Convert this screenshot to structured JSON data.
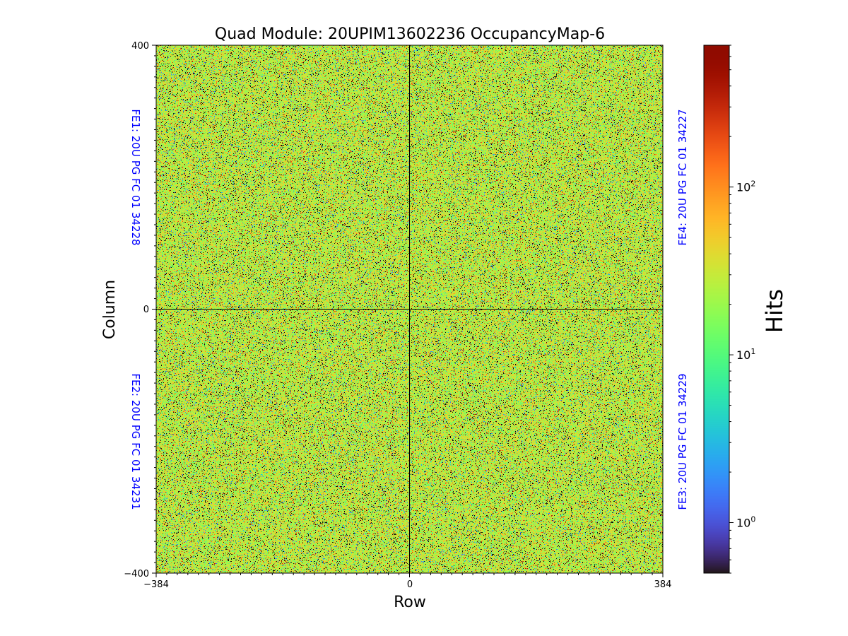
{
  "chart_data": {
    "type": "heatmap",
    "title": "Quad Module: 20UPIM13602236 OccupancyMap-6",
    "xlabel": "Row",
    "ylabel": "Column",
    "xlim": [
      -384,
      384
    ],
    "ylim": [
      -400,
      400
    ],
    "x_ticks": [
      "−384",
      "0",
      "384"
    ],
    "y_ticks": [
      "400",
      "0",
      "−400"
    ],
    "colorbar": {
      "label": "Hits",
      "scale": "log",
      "range": [
        0.5,
        700
      ],
      "colormap": "turbo",
      "ticks": [
        {
          "value": 1,
          "base": "10",
          "exp": "0"
        },
        {
          "value": 10,
          "base": "10",
          "exp": "1"
        },
        {
          "value": 100,
          "base": "10",
          "exp": "2"
        }
      ]
    },
    "typical_hits_range": [
      5,
      60
    ],
    "fe_labels": [
      {
        "quadrant": "top-left",
        "text": "FE1: 20U PG FC 01 34228"
      },
      {
        "quadrant": "bottom-left",
        "text": "FE2: 20U PG FC 01 34231"
      },
      {
        "quadrant": "bottom-right",
        "text": "FE3: 20U PG FC 01 34229"
      },
      {
        "quadrant": "top-right",
        "text": "FE4: 20U PG FC 01 34227"
      }
    ],
    "fe_label_color": "#0000ff",
    "divider_lines": {
      "x": 0,
      "y": 0,
      "color": "#000000"
    }
  }
}
